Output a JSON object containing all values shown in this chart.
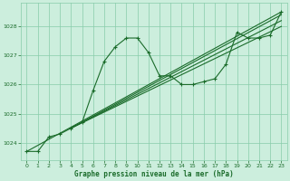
{
  "xlabel": "Graphe pression niveau de la mer (hPa)",
  "ylim": [
    1023.4,
    1028.8
  ],
  "xlim": [
    -0.5,
    23.5
  ],
  "yticks": [
    1024,
    1025,
    1026,
    1027,
    1028
  ],
  "xticks": [
    0,
    1,
    2,
    3,
    4,
    5,
    6,
    7,
    8,
    9,
    10,
    11,
    12,
    13,
    14,
    15,
    16,
    17,
    18,
    19,
    20,
    21,
    22,
    23
  ],
  "background_color": "#cceedd",
  "grid_color": "#88ccaa",
  "line_color": "#1a6b2a",
  "main_series_x": [
    0,
    1,
    2,
    3,
    4,
    5,
    6,
    7,
    8,
    9,
    10,
    11,
    12,
    13,
    14,
    15,
    16,
    17,
    18,
    19,
    20,
    21,
    22,
    23
  ],
  "main_series_y": [
    1023.7,
    1023.7,
    1024.2,
    1024.3,
    1024.5,
    1024.7,
    1025.8,
    1026.8,
    1027.3,
    1027.6,
    1027.6,
    1027.1,
    1026.3,
    1026.3,
    1026.0,
    1026.0,
    1026.1,
    1026.2,
    1026.7,
    1027.8,
    1027.6,
    1027.6,
    1027.7,
    1028.5
  ],
  "trend1_x": [
    0,
    23
  ],
  "trend1_y": [
    1023.7,
    1028.5
  ],
  "trend2_x": [
    4,
    23
  ],
  "trend2_y": [
    1024.5,
    1028.4
  ],
  "trend3_x": [
    4,
    23
  ],
  "trend3_y": [
    1024.5,
    1028.2
  ],
  "trend4_x": [
    4,
    23
  ],
  "trend4_y": [
    1024.5,
    1028.0
  ],
  "font_color": "#1a6b2a"
}
